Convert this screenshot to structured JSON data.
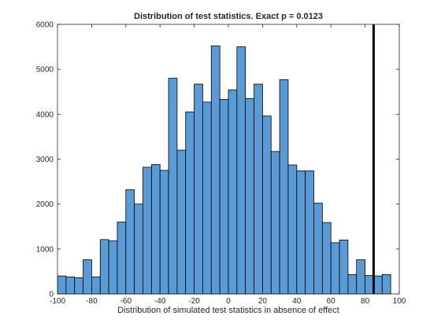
{
  "chart_data": {
    "type": "bar",
    "title": "Distribution of test statistics. Exact p = 0.0123",
    "xlabel": "Distribution of simulated test statistics in absence of effect",
    "ylabel": "",
    "xlim": [
      -100,
      100
    ],
    "ylim": [
      0,
      6000
    ],
    "xticks": [
      -100,
      -80,
      -60,
      -40,
      -20,
      0,
      20,
      40,
      60,
      80,
      100
    ],
    "yticks": [
      0,
      1000,
      2000,
      3000,
      4000,
      5000,
      6000
    ],
    "grid": false,
    "bar_color": "#5b9bd5",
    "bar_edge_color": "#000000",
    "bins": [
      {
        "from": -100,
        "to": -95,
        "count": 400
      },
      {
        "from": -95,
        "to": -90,
        "count": 380
      },
      {
        "from": -90,
        "to": -85,
        "count": 360
      },
      {
        "from": -85,
        "to": -80,
        "count": 760
      },
      {
        "from": -80,
        "to": -75,
        "count": 380
      },
      {
        "from": -75,
        "to": -70,
        "count": 1210
      },
      {
        "from": -70,
        "to": -65,
        "count": 1180
      },
      {
        "from": -65,
        "to": -60,
        "count": 1600
      },
      {
        "from": -60,
        "to": -55,
        "count": 2320
      },
      {
        "from": -55,
        "to": -50,
        "count": 2000
      },
      {
        "from": -50,
        "to": -45,
        "count": 2820
      },
      {
        "from": -45,
        "to": -40,
        "count": 2880
      },
      {
        "from": -40,
        "to": -35,
        "count": 2750
      },
      {
        "from": -35,
        "to": -30,
        "count": 4800
      },
      {
        "from": -30,
        "to": -25,
        "count": 3200
      },
      {
        "from": -25,
        "to": -20,
        "count": 4050
      },
      {
        "from": -20,
        "to": -15,
        "count": 4670
      },
      {
        "from": -15,
        "to": -10,
        "count": 4270
      },
      {
        "from": -10,
        "to": -5,
        "count": 5520
      },
      {
        "from": -5,
        "to": 0,
        "count": 4330
      },
      {
        "from": 0,
        "to": 5,
        "count": 4540
      },
      {
        "from": 5,
        "to": 10,
        "count": 5500
      },
      {
        "from": 10,
        "to": 15,
        "count": 4350
      },
      {
        "from": 15,
        "to": 20,
        "count": 4670
      },
      {
        "from": 20,
        "to": 25,
        "count": 3960
      },
      {
        "from": 25,
        "to": 30,
        "count": 3170
      },
      {
        "from": 30,
        "to": 35,
        "count": 4770
      },
      {
        "from": 35,
        "to": 40,
        "count": 2870
      },
      {
        "from": 40,
        "to": 45,
        "count": 2740
      },
      {
        "from": 45,
        "to": 50,
        "count": 2740
      },
      {
        "from": 50,
        "to": 55,
        "count": 2020
      },
      {
        "from": 55,
        "to": 60,
        "count": 1590
      },
      {
        "from": 60,
        "to": 65,
        "count": 1140
      },
      {
        "from": 65,
        "to": 70,
        "count": 1200
      },
      {
        "from": 70,
        "to": 75,
        "count": 430
      },
      {
        "from": 75,
        "to": 80,
        "count": 760
      },
      {
        "from": 80,
        "to": 85,
        "count": 410
      },
      {
        "from": 85,
        "to": 90,
        "count": 400
      },
      {
        "from": 90,
        "to": 95,
        "count": 430
      }
    ],
    "reference_line": {
      "x": 85,
      "color": "#000000"
    }
  }
}
